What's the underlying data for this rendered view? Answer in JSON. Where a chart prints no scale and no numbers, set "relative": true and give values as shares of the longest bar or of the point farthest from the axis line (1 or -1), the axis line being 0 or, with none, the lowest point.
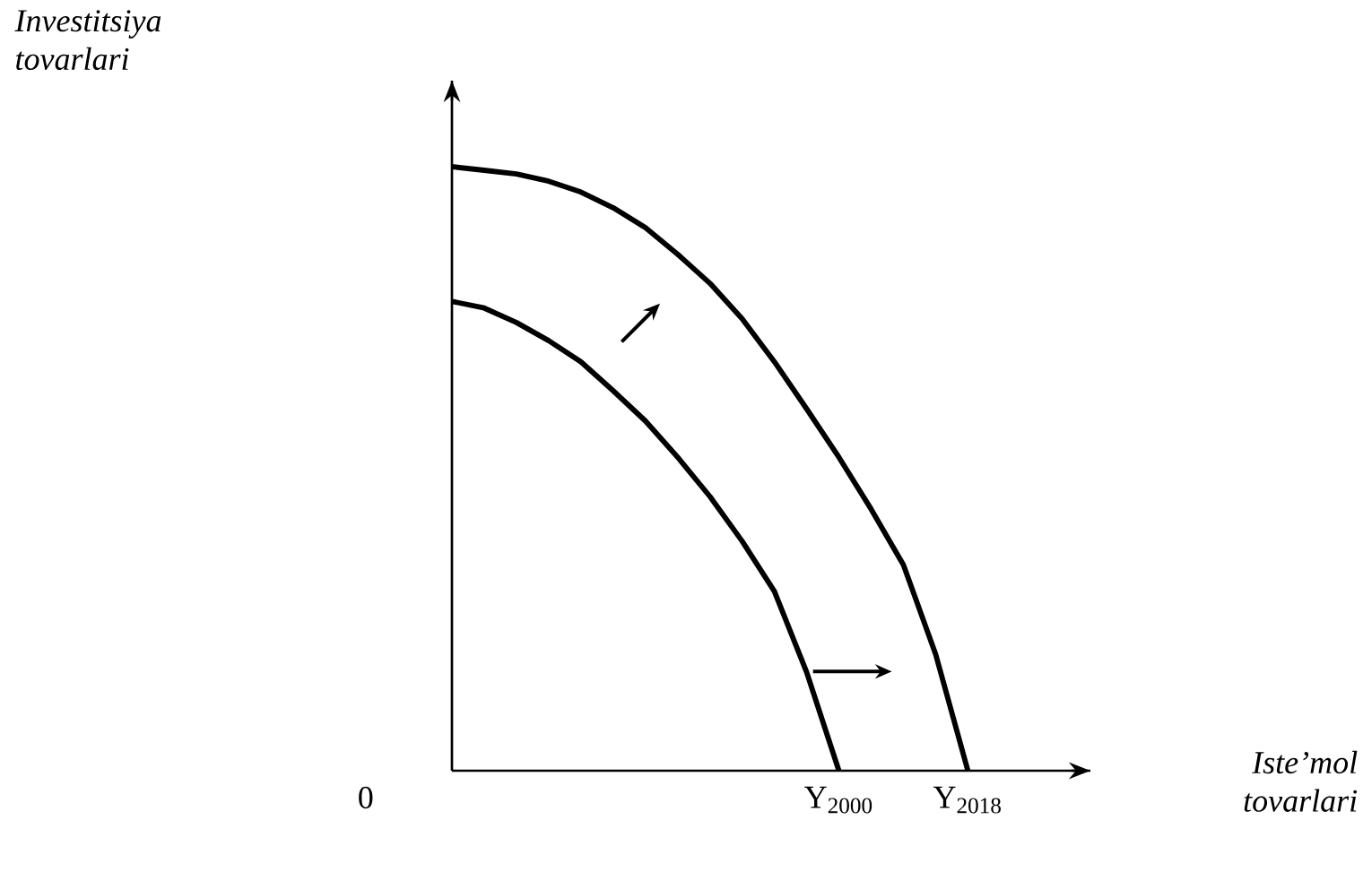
{
  "chart_data": {
    "type": "line",
    "relative": true,
    "annotations": [
      "0",
      "Investitsiya tovarlari",
      "Iste’mol tovarlari"
    ],
    "categories": [
      null,
      null,
      null,
      null,
      null,
      null,
      null,
      null,
      null,
      null,
      null,
      null,
      "Y$_{2000}$",
      null,
      null,
      null,
      "Y$_{2018}$"
    ],
    "series": [
      {
        "color": "#000000",
        "values": [
          0.777,
          0.766,
          0.742,
          0.712,
          0.677,
          0.629,
          0.579,
          0.519,
          0.454,
          0.38,
          0.297,
          0.163,
          0,
          null,
          null,
          null,
          null
        ]
      },
      {
        "color": "#000000",
        "values": [
          1,
          0.994,
          0.988,
          0.976,
          0.958,
          0.932,
          0.899,
          0.855,
          0.807,
          0.748,
          0.677,
          0.599,
          0.519,
          0.433,
          0.341,
          0.193,
          0
        ]
      }
    ]
  }
}
